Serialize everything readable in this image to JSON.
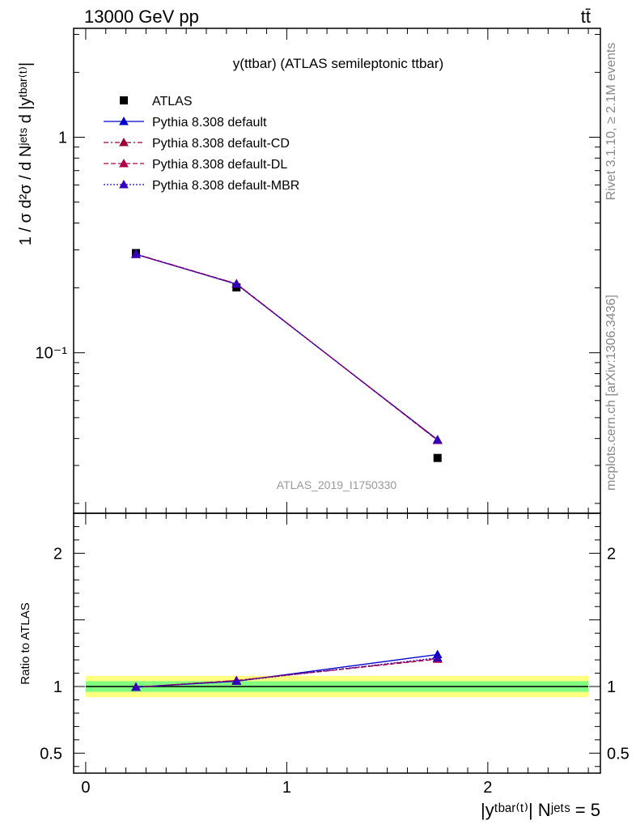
{
  "header": {
    "energy_label": "13000 GeV pp",
    "process_label": "tt̄"
  },
  "side_labels": {
    "rivet": "Rivet 3.1.10, ≥ 2.1M events",
    "mcplots": "mcplots.cern.ch [arXiv:1306.3436]"
  },
  "watermark": "ATLAS_2019_I1750330",
  "chart_data": [
    {
      "type": "line",
      "title": "y(ttbar) (ATLAS semileptonic ttbar)",
      "ylabel": "1 / σ d²σ / d Nʲᵉᵗˢ d |yᵗᵇᵃʳ⁽ᵗ⁾|",
      "yscale": "log",
      "ylim": [
        0.018,
        3.2
      ],
      "xlim": [
        -0.06,
        2.56
      ],
      "yticks": [
        {
          "value": 1,
          "label": "1"
        },
        {
          "value": 0.1,
          "label": "10⁻¹"
        }
      ],
      "legend_position": "top-left",
      "series": [
        {
          "name": "ATLAS",
          "marker": "square",
          "color": "#000000",
          "line": "none",
          "x": [
            0.25,
            0.75,
            1.75
          ],
          "y": [
            0.29,
            0.201,
            0.0325
          ]
        },
        {
          "name": "Pythia 8.308 default",
          "marker": "triangle",
          "color": "#0000cc",
          "line": "solid",
          "x": [
            0.25,
            0.75,
            1.75
          ],
          "y": [
            0.286,
            0.208,
            0.0395
          ]
        },
        {
          "name": "Pythia 8.308 default-CD",
          "marker": "triangle",
          "color": "#990033",
          "line": "dashdot",
          "x": [
            0.25,
            0.75,
            1.75
          ],
          "y": [
            0.287,
            0.209,
            0.0393
          ]
        },
        {
          "name": "Pythia 8.308 default-DL",
          "marker": "triangle",
          "color": "#b0004a",
          "line": "dashed",
          "x": [
            0.25,
            0.75,
            1.75
          ],
          "y": [
            0.286,
            0.209,
            0.0392
          ]
        },
        {
          "name": "Pythia 8.308 default-MBR",
          "marker": "triangle",
          "color": "#3300bb",
          "line": "dotted",
          "x": [
            0.25,
            0.75,
            1.75
          ],
          "y": [
            0.287,
            0.208,
            0.0394
          ]
        }
      ]
    },
    {
      "type": "line",
      "ylabel": "Ratio to ATLAS",
      "xlabel": "|yᵗᵇᵃʳ⁽ᵗ⁾| Nʲᵉᵗˢ = 5",
      "ylim": [
        0.35,
        2.3
      ],
      "xlim": [
        -0.06,
        2.56
      ],
      "xticks": [
        {
          "value": 0,
          "label": "0"
        },
        {
          "value": 1,
          "label": "1"
        },
        {
          "value": 2,
          "label": "2"
        }
      ],
      "yticks": [
        {
          "value": 0.5,
          "label": "0.5"
        },
        {
          "value": 1,
          "label": "1"
        },
        {
          "value": 2,
          "label": "2"
        }
      ],
      "bands": [
        {
          "kind": "yellow",
          "color": "#ffff80",
          "lo": [
            0.92,
            0.92,
            0.92
          ],
          "hi": [
            1.08,
            1.08,
            1.08
          ]
        },
        {
          "kind": "green",
          "color": "#80ff80",
          "lo": [
            0.96,
            0.96,
            0.96
          ],
          "hi": [
            1.04,
            1.04,
            1.04
          ]
        }
      ],
      "series": [
        {
          "name": "Pythia 8.308 default",
          "color": "#0000cc",
          "line": "solid",
          "x": [
            0.25,
            0.75,
            1.75
          ],
          "y": [
            0.995,
            1.04,
            1.24
          ]
        },
        {
          "name": "Pythia 8.308 default-CD",
          "color": "#990033",
          "line": "dashdot",
          "x": [
            0.25,
            0.75,
            1.75
          ],
          "y": [
            0.995,
            1.045,
            1.21
          ]
        },
        {
          "name": "Pythia 8.308 default-DL",
          "color": "#b0004a",
          "line": "dashed",
          "x": [
            0.25,
            0.75,
            1.75
          ],
          "y": [
            0.995,
            1.045,
            1.205
          ]
        },
        {
          "name": "Pythia 8.308 default-MBR",
          "color": "#3300bb",
          "line": "dotted",
          "x": [
            0.25,
            0.75,
            1.75
          ],
          "y": [
            0.995,
            1.04,
            1.215
          ]
        }
      ]
    }
  ]
}
